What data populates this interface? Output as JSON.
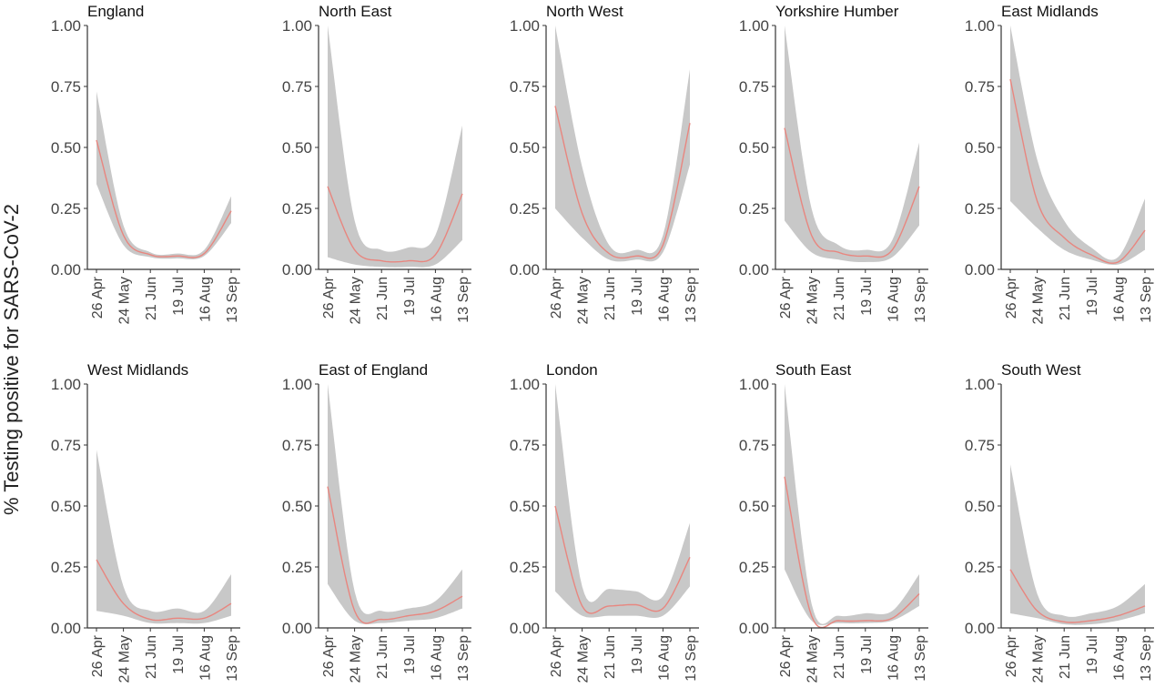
{
  "figure": {
    "ylabel": "% Testing positive for SARS-CoV-2"
  },
  "colors": {
    "line": "#e8867f",
    "band": "#c8c8c8",
    "axis": "#333333",
    "text": "#444444"
  },
  "chart_data": [
    {
      "type": "line",
      "title": "England",
      "x": [
        "26 Apr",
        "24 May",
        "21 Jun",
        "19 Jul",
        "16 Aug",
        "13 Sep"
      ],
      "ylim": [
        0,
        1
      ],
      "yticks": [
        "0.00",
        "0.25",
        "0.50",
        "0.75",
        "1.00"
      ],
      "mean": [
        0.53,
        0.14,
        0.06,
        0.055,
        0.065,
        0.24
      ],
      "lower": [
        0.35,
        0.1,
        0.05,
        0.045,
        0.055,
        0.19
      ],
      "upper": [
        0.73,
        0.18,
        0.07,
        0.065,
        0.08,
        0.3
      ]
    },
    {
      "type": "line",
      "title": "North East",
      "x": [
        "26 Apr",
        "24 May",
        "21 Jun",
        "19 Jul",
        "16 Aug",
        "13 Sep"
      ],
      "ylim": [
        0,
        1
      ],
      "yticks": [
        "0.00",
        "0.25",
        "0.50",
        "0.75",
        "1.00"
      ],
      "mean": [
        0.34,
        0.08,
        0.035,
        0.035,
        0.06,
        0.31
      ],
      "lower": [
        0.05,
        0.02,
        0.01,
        0.01,
        0.02,
        0.12
      ],
      "upper": [
        1.0,
        0.2,
        0.08,
        0.09,
        0.14,
        0.59
      ]
    },
    {
      "type": "line",
      "title": "North West",
      "x": [
        "26 Apr",
        "24 May",
        "21 Jun",
        "19 Jul",
        "16 Aug",
        "13 Sep"
      ],
      "ylim": [
        0,
        1
      ],
      "yticks": [
        "0.00",
        "0.25",
        "0.50",
        "0.75",
        "1.00"
      ],
      "mean": [
        0.67,
        0.23,
        0.065,
        0.055,
        0.1,
        0.6
      ],
      "lower": [
        0.25,
        0.13,
        0.04,
        0.04,
        0.07,
        0.43
      ],
      "upper": [
        1.0,
        0.42,
        0.1,
        0.08,
        0.14,
        0.82
      ]
    },
    {
      "type": "line",
      "title": "Yorkshire Humber",
      "x": [
        "26 Apr",
        "24 May",
        "21 Jun",
        "19 Jul",
        "16 Aug",
        "13 Sep"
      ],
      "ylim": [
        0,
        1
      ],
      "yticks": [
        "0.00",
        "0.25",
        "0.50",
        "0.75",
        "1.00"
      ],
      "mean": [
        0.58,
        0.14,
        0.07,
        0.055,
        0.08,
        0.34
      ],
      "lower": [
        0.2,
        0.07,
        0.04,
        0.03,
        0.05,
        0.18
      ],
      "upper": [
        1.0,
        0.25,
        0.1,
        0.08,
        0.12,
        0.52
      ]
    },
    {
      "type": "line",
      "title": "East Midlands",
      "x": [
        "26 Apr",
        "24 May",
        "21 Jun",
        "19 Jul",
        "16 Aug",
        "13 Sep"
      ],
      "ylim": [
        0,
        1
      ],
      "yticks": [
        "0.00",
        "0.25",
        "0.50",
        "0.75",
        "1.00"
      ],
      "mean": [
        0.78,
        0.28,
        0.13,
        0.06,
        0.03,
        0.16
      ],
      "lower": [
        0.28,
        0.17,
        0.08,
        0.04,
        0.02,
        0.08
      ],
      "upper": [
        1.0,
        0.45,
        0.2,
        0.09,
        0.05,
        0.29
      ]
    },
    {
      "type": "line",
      "title": "West Midlands",
      "x": [
        "26 Apr",
        "24 May",
        "21 Jun",
        "19 Jul",
        "16 Aug",
        "13 Sep"
      ],
      "ylim": [
        0,
        1
      ],
      "yticks": [
        "0.00",
        "0.25",
        "0.50",
        "0.75",
        "1.00"
      ],
      "mean": [
        0.28,
        0.1,
        0.035,
        0.04,
        0.04,
        0.1
      ],
      "lower": [
        0.07,
        0.05,
        0.02,
        0.02,
        0.02,
        0.05
      ],
      "upper": [
        0.73,
        0.17,
        0.07,
        0.08,
        0.07,
        0.22
      ]
    },
    {
      "type": "line",
      "title": "East of England",
      "x": [
        "26 Apr",
        "24 May",
        "21 Jun",
        "19 Jul",
        "16 Aug",
        "13 Sep"
      ],
      "ylim": [
        0,
        1
      ],
      "yticks": [
        "0.00",
        "0.25",
        "0.50",
        "0.75",
        "1.00"
      ],
      "mean": [
        0.58,
        0.07,
        0.035,
        0.05,
        0.07,
        0.13
      ],
      "lower": [
        0.18,
        0.03,
        0.02,
        0.03,
        0.04,
        0.08
      ],
      "upper": [
        1.0,
        0.15,
        0.07,
        0.08,
        0.11,
        0.24
      ]
    },
    {
      "type": "line",
      "title": "London",
      "x": [
        "26 Apr",
        "24 May",
        "21 Jun",
        "19 Jul",
        "16 Aug",
        "13 Sep"
      ],
      "ylim": [
        0,
        1
      ],
      "yticks": [
        "0.00",
        "0.25",
        "0.50",
        "0.75",
        "1.00"
      ],
      "mean": [
        0.5,
        0.09,
        0.09,
        0.095,
        0.08,
        0.29
      ],
      "lower": [
        0.15,
        0.05,
        0.05,
        0.05,
        0.05,
        0.17
      ],
      "upper": [
        1.0,
        0.17,
        0.16,
        0.15,
        0.13,
        0.43
      ]
    },
    {
      "type": "line",
      "title": "South East",
      "x": [
        "26 Apr",
        "24 May",
        "21 Jun",
        "19 Jul",
        "16 Aug",
        "13 Sep"
      ],
      "ylim": [
        0,
        1
      ],
      "yticks": [
        "0.00",
        "0.25",
        "0.50",
        "0.75",
        "1.00"
      ],
      "mean": [
        0.62,
        0.05,
        0.03,
        0.03,
        0.04,
        0.14
      ],
      "lower": [
        0.24,
        0.03,
        0.02,
        0.02,
        0.03,
        0.09
      ],
      "upper": [
        1.0,
        0.1,
        0.05,
        0.06,
        0.07,
        0.22
      ]
    },
    {
      "type": "line",
      "title": "South West",
      "x": [
        "26 Apr",
        "24 May",
        "21 Jun",
        "19 Jul",
        "16 Aug",
        "13 Sep"
      ],
      "ylim": [
        0,
        1
      ],
      "yticks": [
        "0.00",
        "0.25",
        "0.50",
        "0.75",
        "1.00"
      ],
      "mean": [
        0.24,
        0.07,
        0.025,
        0.03,
        0.05,
        0.09
      ],
      "lower": [
        0.06,
        0.04,
        0.015,
        0.015,
        0.03,
        0.06
      ],
      "upper": [
        0.67,
        0.14,
        0.05,
        0.06,
        0.09,
        0.18
      ]
    }
  ]
}
